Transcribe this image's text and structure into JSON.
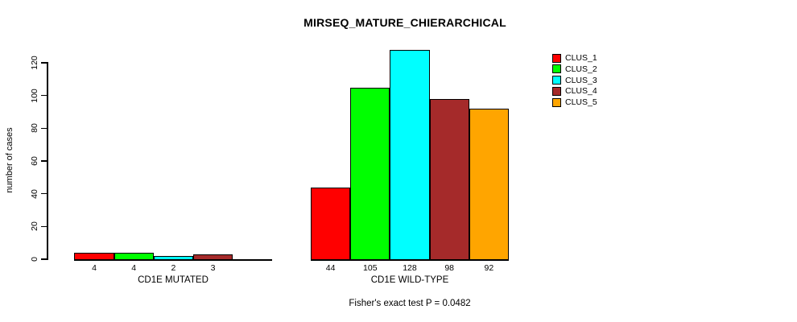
{
  "chart_data": {
    "type": "bar",
    "title": "MIRSEQ_MATURE_CHIERARCHICAL",
    "ylabel": "number of cases",
    "ylim": [
      0,
      120
    ],
    "yticks": [
      0,
      20,
      40,
      60,
      80,
      100,
      120
    ],
    "grid": false,
    "legend_position": "top-right",
    "legend": [
      {
        "name": "CLUS_1",
        "color": "#FF0000"
      },
      {
        "name": "CLUS_2",
        "color": "#00FF00"
      },
      {
        "name": "CLUS_3",
        "color": "#00FFFF"
      },
      {
        "name": "CLUS_4",
        "color": "#A52A2A"
      },
      {
        "name": "CLUS_5",
        "color": "#FFA500"
      }
    ],
    "categories": [
      "CLUS_1",
      "CLUS_2",
      "CLUS_3",
      "CLUS_4",
      "CLUS_5"
    ],
    "groups": [
      {
        "label": "CD1E MUTATED",
        "values": [
          4,
          4,
          2,
          3,
          0
        ],
        "bar_labels": [
          "4",
          "4",
          "2",
          "3",
          ""
        ]
      },
      {
        "label": "CD1E WILD-TYPE",
        "values": [
          44,
          105,
          128,
          98,
          92
        ],
        "bar_labels": [
          "44",
          "105",
          "128",
          "98",
          "92"
        ]
      }
    ],
    "annotation": "Fisher's exact test P = 0.0482"
  },
  "colors": {
    "axis": "#000000",
    "bar_border": "#000000",
    "background": "#FFFFFF"
  }
}
